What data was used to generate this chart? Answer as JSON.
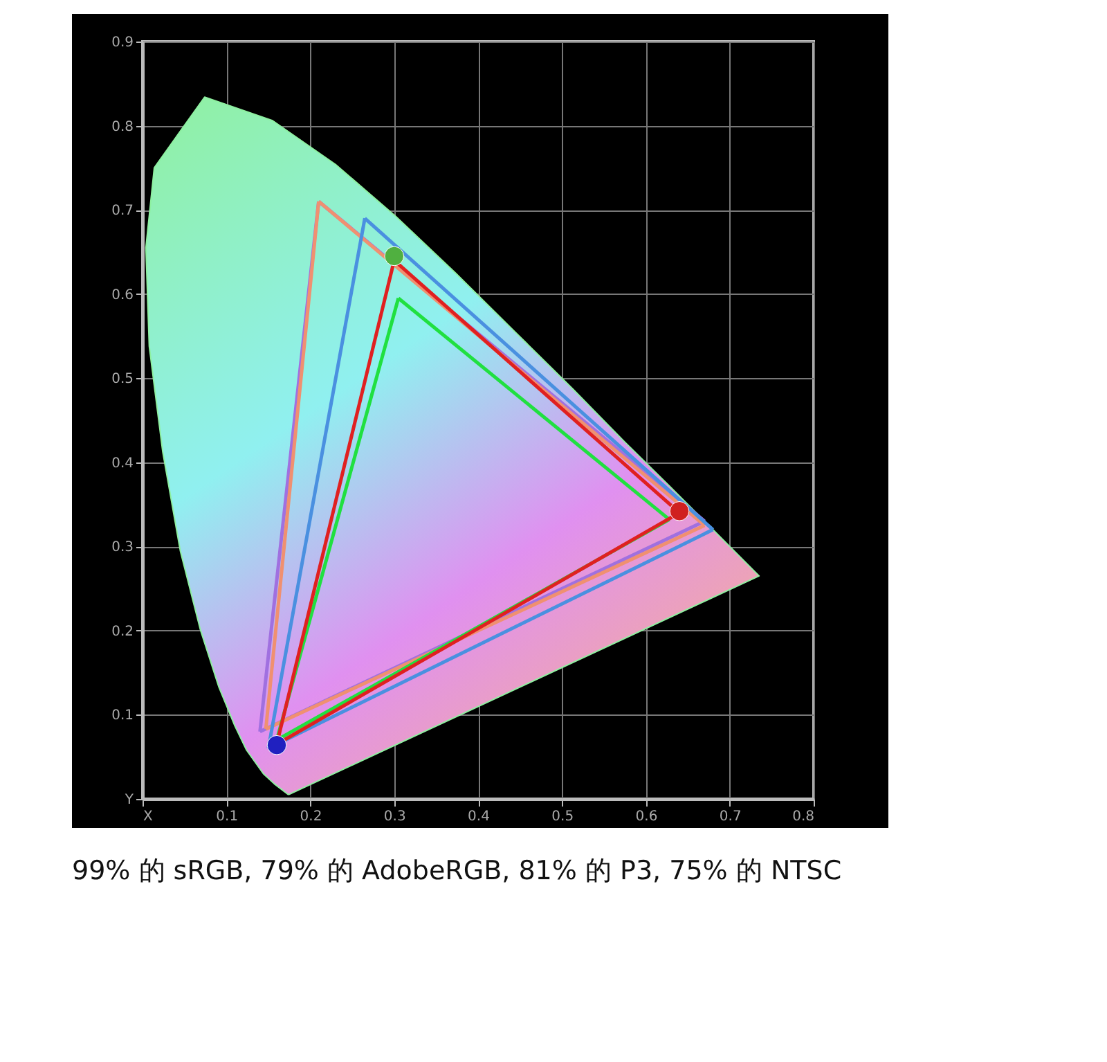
{
  "chart_data": {
    "type": "line",
    "xlim": [
      0,
      0.8
    ],
    "ylim": [
      0,
      0.9
    ],
    "xticks": [
      {
        "value": 0,
        "label": "X"
      },
      0.1,
      0.2,
      0.3,
      0.4,
      0.5,
      0.6,
      0.7,
      0.8
    ],
    "yticks": [
      {
        "value": 0,
        "label": "Y"
      },
      0.1,
      0.2,
      0.3,
      0.4,
      0.5,
      0.6,
      0.7,
      0.8,
      0.9
    ],
    "grid": true,
    "annotations": [
      "99% 的 sRGB, 79% 的 AdobeRGB, 81% 的 P3, 75% 的 NTSC"
    ],
    "series": [
      {
        "type": "area",
        "color": "#8ef0a0",
        "x": [
          0.174,
          0.157,
          0.144,
          0.124,
          0.11,
          0.091,
          0.069,
          0.045,
          0.024,
          0.008,
          0.004,
          0.014,
          0.074,
          0.155,
          0.23,
          0.302,
          0.373,
          0.444,
          0.513,
          0.575,
          0.627,
          0.692,
          0.735,
          0.174
        ],
        "values": [
          0.005,
          0.018,
          0.03,
          0.058,
          0.087,
          0.133,
          0.201,
          0.295,
          0.413,
          0.538,
          0.655,
          0.75,
          0.834,
          0.806,
          0.754,
          0.692,
          0.625,
          0.555,
          0.487,
          0.424,
          0.373,
          0.308,
          0.265,
          0.005
        ]
      },
      {
        "color": "#a070e0",
        "x": [
          0.21,
          0.67
        ],
        "values": [
          0.71,
          0.33
        ]
      },
      {
        "color": "#a070e0",
        "x": [
          0.14,
          0.67
        ],
        "values": [
          0.08,
          0.33
        ]
      },
      {
        "color": "#a070e0",
        "x": [
          0.14,
          0.21
        ],
        "values": [
          0.08,
          0.71
        ]
      },
      {
        "color": "#f09070",
        "x": [
          0.21,
          0.67
        ],
        "values": [
          0.71,
          0.325
        ]
      },
      {
        "color": "#f09070",
        "x": [
          0.147,
          0.67
        ],
        "values": [
          0.083,
          0.325
        ]
      },
      {
        "color": "#f09070",
        "x": [
          0.147,
          0.21
        ],
        "values": [
          0.083,
          0.71
        ]
      },
      {
        "color": "#4a90e0",
        "x": [
          0.265,
          0.68
        ],
        "values": [
          0.69,
          0.32
        ]
      },
      {
        "color": "#4a90e0",
        "x": [
          0.15,
          0.68
        ],
        "values": [
          0.06,
          0.32
        ]
      },
      {
        "color": "#4a90e0",
        "x": [
          0.15,
          0.265
        ],
        "values": [
          0.06,
          0.69
        ]
      },
      {
        "color": "#20e040",
        "x": [
          0.305,
          0.628
        ],
        "values": [
          0.595,
          0.332
        ]
      },
      {
        "color": "#20e040",
        "x": [
          0.16,
          0.628
        ],
        "values": [
          0.07,
          0.332
        ]
      },
      {
        "color": "#20e040",
        "x": [
          0.16,
          0.305
        ],
        "values": [
          0.07,
          0.595
        ]
      },
      {
        "color": "#e02020",
        "x": [
          0.3,
          0.64
        ],
        "values": [
          0.64,
          0.34
        ]
      },
      {
        "color": "#e02020",
        "x": [
          0.16,
          0.64
        ],
        "values": [
          0.065,
          0.34
        ]
      },
      {
        "color": "#e02020",
        "x": [
          0.16,
          0.3
        ],
        "values": [
          0.065,
          0.64
        ]
      },
      {
        "type": "scatter",
        "marker": "circle",
        "x": [
          0.3,
          0.64,
          0.16
        ],
        "values": [
          0.645,
          0.342,
          0.064
        ],
        "colors": [
          "#50b040",
          "#d02020",
          "#2020c0"
        ]
      }
    ]
  }
}
